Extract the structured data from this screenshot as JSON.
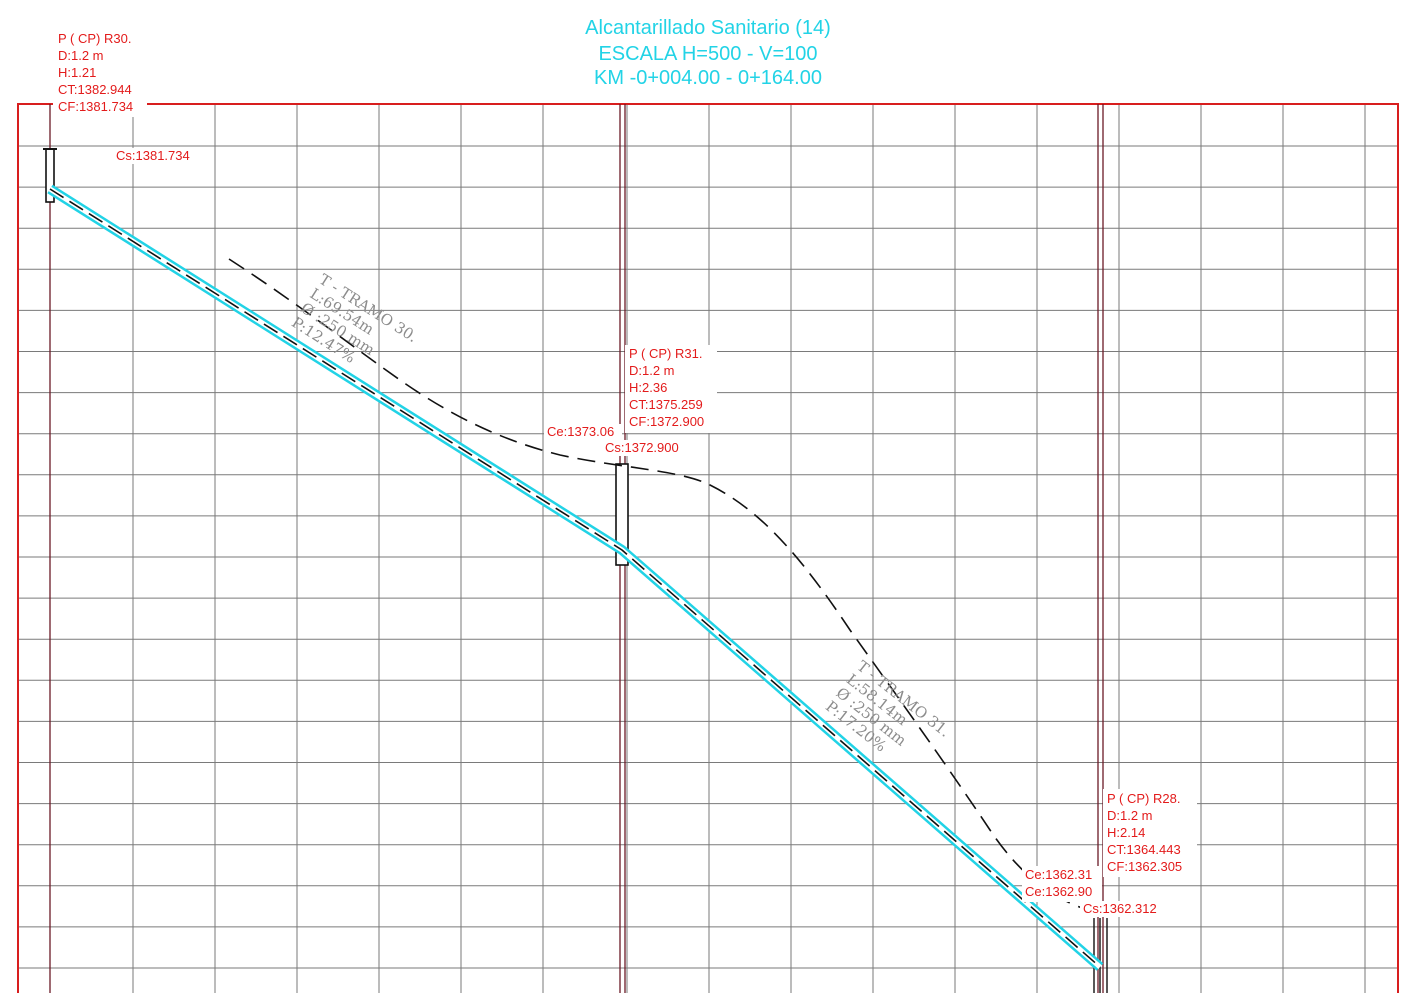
{
  "title": {
    "line1": "Alcantarillado Sanitario (14)",
    "line2": "ESCALA H=500 - V=100",
    "line3": "KM -0+004.00 - 0+164.00"
  },
  "colors": {
    "title": "#22d3e6",
    "label": "#e31b1b",
    "grid": "#7a7a7a",
    "frame": "#d81e1e",
    "pipe": "#22d3e6",
    "manhole_line": "#6b1a26",
    "tramo_text": "#8c8c8c"
  },
  "manholes": [
    {
      "id": "r30",
      "name": "P ( CP)  R30.",
      "d": "D:1.2 m",
      "h": "H:1.21",
      "ct": "CT:1382.944",
      "cf": "CF:1381.734",
      "cs": "Cs:1381.734"
    },
    {
      "id": "r31",
      "name": "P ( CP)  R31.",
      "d": "D:1.2 m",
      "h": "H:2.36",
      "ct": "CT:1375.259",
      "cf": "CF:1372.900",
      "ce": "Ce:1373.06",
      "cs": "Cs:1372.900"
    },
    {
      "id": "r28",
      "name": "P ( CP)  R28.",
      "d": "D:1.2 m",
      "h": "H:2.14",
      "ct": "CT:1364.443",
      "cf": "CF:1362.305",
      "ce1": "Ce:1362.31",
      "ce2": "Ce:1362.90",
      "cs": "Cs:1362.312"
    }
  ],
  "tramos": [
    {
      "id": "tramo-30",
      "name": "T - TRAMO 30.",
      "length": "L:69.54m",
      "diameter": "Ø :250 mm",
      "slope": "P:12.47%"
    },
    {
      "id": "tramo-31",
      "name": "T - TRAMO 31.",
      "length": "L:58.14m",
      "diameter": "Ø :250 mm",
      "slope": "P:17.20%"
    }
  ]
}
